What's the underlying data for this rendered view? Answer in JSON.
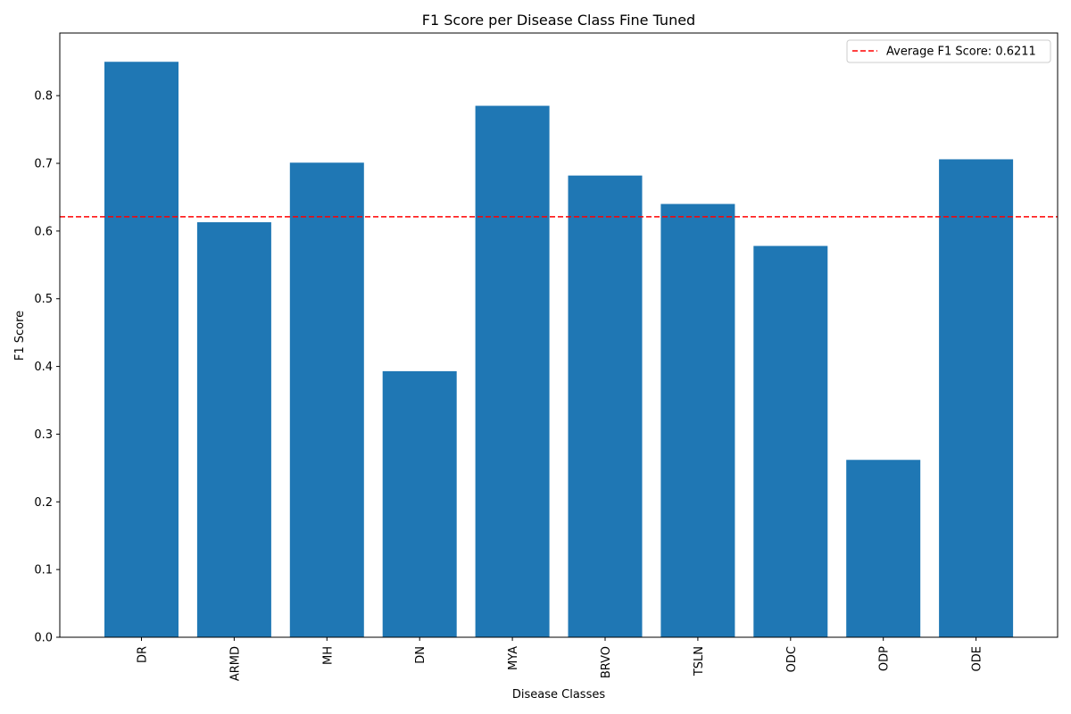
{
  "chart_data": {
    "type": "bar",
    "title": "F1 Score per Disease Class Fine Tuned",
    "xlabel": "Disease Classes",
    "ylabel": "F1 Score",
    "categories": [
      "DR",
      "ARMD",
      "MH",
      "DN",
      "MYA",
      "BRVO",
      "TSLN",
      "ODC",
      "ODP",
      "ODE"
    ],
    "values": [
      0.85,
      0.613,
      0.701,
      0.393,
      0.785,
      0.682,
      0.64,
      0.578,
      0.262,
      0.706
    ],
    "ylim": [
      0,
      0.8925
    ],
    "yticks": [
      "0.0",
      "0.1",
      "0.2",
      "0.3",
      "0.4",
      "0.5",
      "0.6",
      "0.7",
      "0.8"
    ],
    "reference_line": {
      "value": 0.6211,
      "label": "Average F1 Score: 0.6211",
      "color": "#ff0000",
      "style": "dashed"
    },
    "bar_color": "#1f77b4",
    "grid": false,
    "legend": {
      "placement": "top-right"
    }
  }
}
